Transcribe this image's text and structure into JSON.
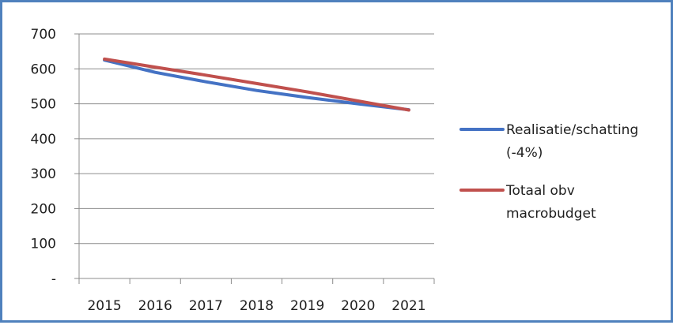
{
  "chart_data": {
    "type": "line",
    "title": "",
    "xlabel": "",
    "ylabel": "",
    "x": [
      "2015",
      "2016",
      "2017",
      "2018",
      "2019",
      "2020",
      "2021"
    ],
    "ylim": [
      0,
      700
    ],
    "y_ticks": [
      {
        "value": 0,
        "label": "-"
      },
      {
        "value": 100,
        "label": "100"
      },
      {
        "value": 200,
        "label": "200"
      },
      {
        "value": 300,
        "label": "300"
      },
      {
        "value": 400,
        "label": "400"
      },
      {
        "value": 500,
        "label": "500"
      },
      {
        "value": 600,
        "label": "600"
      },
      {
        "value": 700,
        "label": "700"
      }
    ],
    "grid": "horizontal",
    "legend_position": "right",
    "series": [
      {
        "name": "Realisatie/schatting (-4%)",
        "legend_lines": [
          "Realisatie/schatting",
          "(-4%)"
        ],
        "color": "#4472c4",
        "values": [
          625,
          590,
          563,
          538,
          518,
          500,
          483
        ]
      },
      {
        "name": "Totaal obv macrobudget",
        "legend_lines": [
          "Totaal obv",
          "macrobudget"
        ],
        "color": "#c0504d",
        "values": [
          628,
          605,
          582,
          558,
          534,
          508,
          482
        ]
      }
    ]
  }
}
